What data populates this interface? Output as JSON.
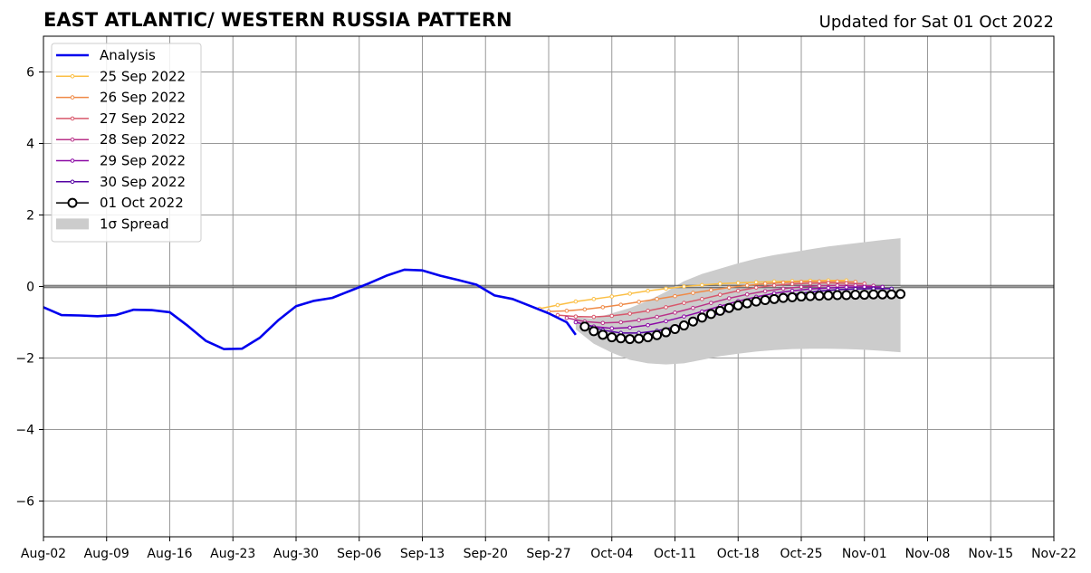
{
  "chart_data": {
    "type": "line",
    "title": "EAST ATLANTIC/ WESTERN RUSSIA PATTERN",
    "subtitle": "Updated for Sat 01 Oct 2022",
    "xlabel": "",
    "ylabel": "",
    "x_axis": {
      "type": "date",
      "range": [
        "2022-08-02",
        "2022-11-22"
      ],
      "tick_labels": [
        "Aug-02",
        "Aug-09",
        "Aug-16",
        "Aug-23",
        "Aug-30",
        "Sep-06",
        "Sep-13",
        "Sep-20",
        "Sep-27",
        "Oct-04",
        "Oct-11",
        "Oct-18",
        "Oct-25",
        "Nov-01",
        "Nov-08",
        "Nov-15",
        "Nov-22"
      ],
      "tick_dates": [
        "2022-08-02",
        "2022-08-09",
        "2022-08-16",
        "2022-08-23",
        "2022-08-30",
        "2022-09-06",
        "2022-09-13",
        "2022-09-20",
        "2022-09-27",
        "2022-10-04",
        "2022-10-11",
        "2022-10-18",
        "2022-10-25",
        "2022-11-01",
        "2022-11-08",
        "2022-11-15",
        "2022-11-22"
      ]
    },
    "y_axis": {
      "range": [
        -7,
        7
      ],
      "ticks": [
        -6,
        -4,
        -2,
        0,
        2,
        4,
        6
      ],
      "tick_labels": [
        "−6",
        "−4",
        "−2",
        "0",
        "2",
        "4",
        "6"
      ]
    },
    "grid": true,
    "zero_line": true,
    "legend_placement": "upper-left",
    "analysis": {
      "name": "Analysis",
      "color": "#0000ee",
      "x": [
        "2022-08-02",
        "2022-08-04",
        "2022-08-06",
        "2022-08-08",
        "2022-08-10",
        "2022-08-12",
        "2022-08-14",
        "2022-08-16",
        "2022-08-18",
        "2022-08-20",
        "2022-08-22",
        "2022-08-24",
        "2022-08-26",
        "2022-08-28",
        "2022-08-30",
        "2022-09-01",
        "2022-09-03",
        "2022-09-05",
        "2022-09-07",
        "2022-09-09",
        "2022-09-11",
        "2022-09-13",
        "2022-09-15",
        "2022-09-17",
        "2022-09-19",
        "2022-09-21",
        "2022-09-23",
        "2022-09-25",
        "2022-09-27",
        "2022-09-29",
        "2022-09-30"
      ],
      "y": [
        -0.58,
        -0.8,
        -0.81,
        -0.83,
        -0.8,
        -0.65,
        -0.66,
        -0.72,
        -1.1,
        -1.52,
        -1.75,
        -1.74,
        -1.43,
        -0.95,
        -0.55,
        -0.4,
        -0.32,
        -0.12,
        0.08,
        0.3,
        0.47,
        0.45,
        0.3,
        0.18,
        0.05,
        -0.25,
        -0.35,
        -0.55,
        -0.75,
        -1.0,
        -1.35
      ]
    },
    "spread": {
      "name": "1σ Spread",
      "color": "#cccccc",
      "x": [
        "2022-09-30",
        "2022-10-02",
        "2022-10-04",
        "2022-10-06",
        "2022-10-08",
        "2022-10-10",
        "2022-10-12",
        "2022-10-14",
        "2022-10-16",
        "2022-10-18",
        "2022-10-20",
        "2022-10-22",
        "2022-10-24",
        "2022-10-26",
        "2022-10-28",
        "2022-10-30",
        "2022-11-01",
        "2022-11-03",
        "2022-11-05"
      ],
      "upper": [
        -0.85,
        -0.9,
        -0.75,
        -0.6,
        -0.4,
        -0.15,
        0.15,
        0.35,
        0.5,
        0.65,
        0.78,
        0.88,
        0.96,
        1.04,
        1.12,
        1.18,
        1.24,
        1.3,
        1.35
      ],
      "lower": [
        -1.2,
        -1.6,
        -1.85,
        -2.05,
        -2.15,
        -2.18,
        -2.15,
        -2.05,
        -1.95,
        -1.88,
        -1.82,
        -1.78,
        -1.75,
        -1.74,
        -1.74,
        -1.75,
        -1.77,
        -1.8,
        -1.84
      ]
    },
    "series": [
      {
        "name": "25 Sep 2022",
        "color": "#fbbf45",
        "start": "2022-09-26",
        "end": "2022-10-30",
        "y": [
          -0.62,
          -0.52,
          -0.42,
          -0.35,
          -0.28,
          -0.2,
          -0.12,
          -0.06,
          0.0,
          0.04,
          0.08,
          0.1,
          0.12,
          0.14,
          0.15,
          0.16,
          0.17,
          0.17
        ]
      },
      {
        "name": "26 Sep 2022",
        "color": "#ef8a47",
        "start": "2022-09-27",
        "end": "2022-10-31",
        "y": [
          -0.7,
          -0.68,
          -0.64,
          -0.58,
          -0.51,
          -0.43,
          -0.35,
          -0.27,
          -0.18,
          -0.1,
          -0.03,
          0.03,
          0.08,
          0.11,
          0.13,
          0.14,
          0.14,
          0.13
        ]
      },
      {
        "name": "27 Sep 2022",
        "color": "#d8576b",
        "start": "2022-09-28",
        "end": "2022-11-01",
        "y": [
          -0.8,
          -0.84,
          -0.85,
          -0.82,
          -0.76,
          -0.68,
          -0.58,
          -0.46,
          -0.35,
          -0.23,
          -0.12,
          -0.03,
          0.03,
          0.07,
          0.09,
          0.1,
          0.09,
          0.08
        ]
      },
      {
        "name": "28 Sep 2022",
        "color": "#b93289",
        "start": "2022-09-29",
        "end": "2022-11-02",
        "y": [
          -0.88,
          -0.98,
          -1.02,
          -1.0,
          -0.94,
          -0.85,
          -0.73,
          -0.6,
          -0.46,
          -0.33,
          -0.22,
          -0.13,
          -0.06,
          -0.01,
          0.02,
          0.03,
          0.03,
          0.02
        ]
      },
      {
        "name": "29 Sep 2022",
        "color": "#8b0aa5",
        "start": "2022-09-30",
        "end": "2022-11-03",
        "y": [
          -1.0,
          -1.12,
          -1.17,
          -1.15,
          -1.08,
          -0.97,
          -0.84,
          -0.7,
          -0.55,
          -0.41,
          -0.29,
          -0.19,
          -0.12,
          -0.07,
          -0.04,
          -0.02,
          -0.01,
          -0.01
        ]
      },
      {
        "name": "30 Sep 2022",
        "color": "#5402a3",
        "start": "2022-10-01",
        "end": "2022-11-04",
        "y": [
          -1.05,
          -1.22,
          -1.3,
          -1.3,
          -1.24,
          -1.13,
          -0.99,
          -0.83,
          -0.66,
          -0.51,
          -0.38,
          -0.27,
          -0.19,
          -0.13,
          -0.09,
          -0.07,
          -0.06,
          -0.06
        ]
      }
    ],
    "current": {
      "name": "01 Oct 2022",
      "color": "#000000",
      "start": "2022-10-01",
      "end": "2022-11-05",
      "y": [
        -1.12,
        -1.25,
        -1.35,
        -1.42,
        -1.45,
        -1.47,
        -1.46,
        -1.42,
        -1.36,
        -1.28,
        -1.19,
        -1.09,
        -0.98,
        -0.87,
        -0.77,
        -0.68,
        -0.6,
        -0.53,
        -0.47,
        -0.42,
        -0.38,
        -0.35,
        -0.32,
        -0.3,
        -0.28,
        -0.27,
        -0.26,
        -0.25,
        -0.24,
        -0.24,
        -0.23,
        -0.23,
        -0.22,
        -0.22,
        -0.22,
        -0.21
      ]
    }
  }
}
